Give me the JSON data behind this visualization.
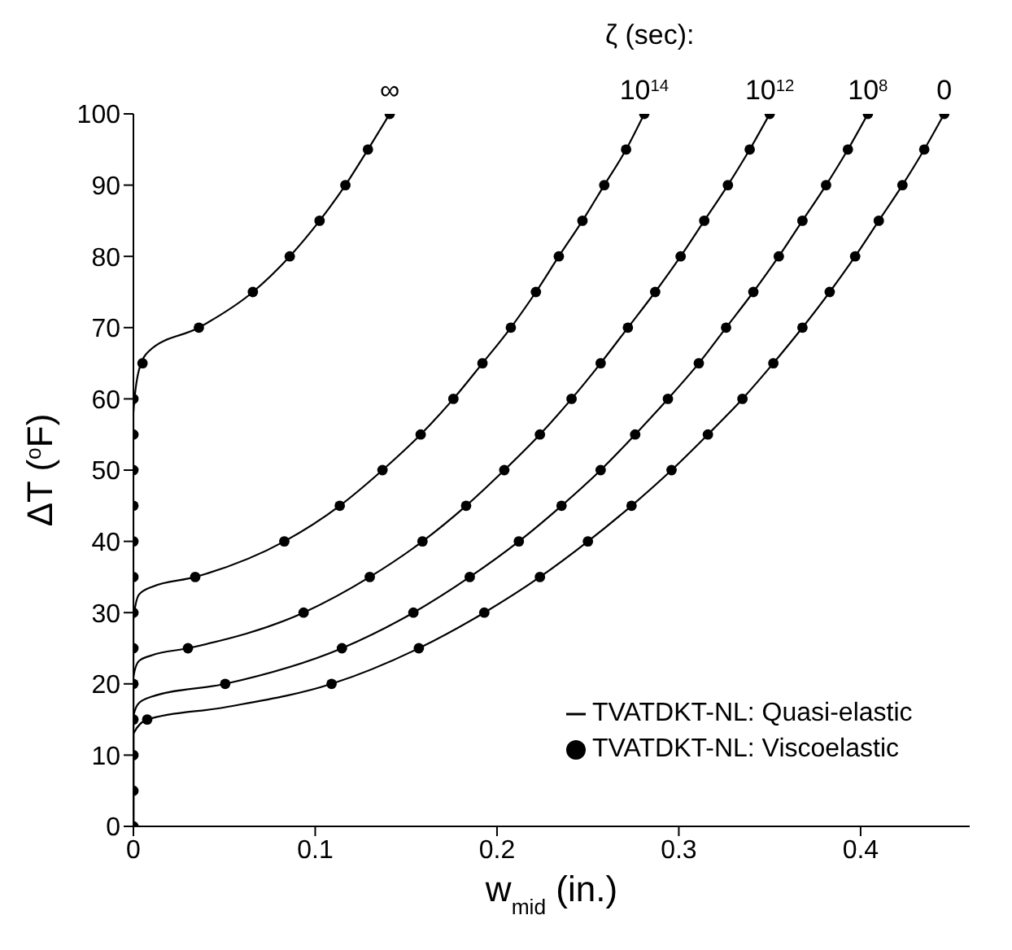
{
  "chart_data": {
    "type": "line",
    "xlabel": "w$_{mid}$ (in.)",
    "ylabel": "ΔT ($^{o}$F)",
    "xlim": [
      0,
      0.46
    ],
    "xticks": [
      0,
      0.1,
      0.2,
      0.3,
      0.4
    ],
    "ylim": [
      0,
      100
    ],
    "yticks": [
      0,
      10,
      20,
      30,
      40,
      50,
      60,
      70,
      80,
      90,
      100
    ],
    "legend": "bottom right",
    "annotations": [
      "ζ (sec):",
      {
        "text": "∞",
        "x": 0.141,
        "y": 100
      },
      {
        "text": "10$^{14}$",
        "x": 0.281,
        "y": 100
      },
      {
        "text": "10$^{12}$",
        "x": 0.35,
        "y": 100
      },
      {
        "text": "10$^{8}$",
        "x": 0.404,
        "y": 100
      },
      {
        "text": "0",
        "x": 0.446,
        "y": 100
      }
    ],
    "series": [
      {
        "name": "TVATDKT-NL: Quasi-elastic",
        "marker": "none",
        "line_style": "solid",
        "color": "#000000",
        "x": [
          0,
          0,
          0.003,
          0.0085,
          0.036,
          0.0657,
          0.086,
          0.1024,
          0.1166,
          0.129,
          0.141
        ],
        "values": [
          0,
          58,
          64,
          66.7,
          70,
          75,
          80,
          85,
          90,
          95,
          100
        ]
      },
      {
        "marker": "none",
        "line_style": "solid",
        "color": "#000000",
        "x": [
          0,
          0,
          0.003,
          0.01,
          0.034,
          0.083,
          0.1135,
          0.137,
          0.158,
          0.176,
          0.192,
          0.2076,
          0.2214,
          0.234,
          0.247,
          0.259,
          0.271,
          0.281
        ],
        "values": [
          0,
          29,
          32.5,
          33.6,
          35,
          40,
          45,
          50,
          55,
          60,
          65,
          70,
          75,
          80,
          85,
          90,
          95,
          100
        ]
      },
      {
        "marker": "none",
        "line_style": "solid",
        "color": "#000000",
        "x": [
          0,
          0,
          0.003,
          0.01,
          0.03,
          0.0936,
          0.13,
          0.159,
          0.183,
          0.204,
          0.2236,
          0.241,
          0.257,
          0.272,
          0.287,
          0.301,
          0.314,
          0.327,
          0.339,
          0.35
        ],
        "values": [
          0,
          21,
          23.2,
          24,
          25,
          30,
          35,
          40,
          45,
          50,
          55,
          60,
          65,
          70,
          75,
          80,
          85,
          90,
          95,
          100
        ]
      },
      {
        "marker": "none",
        "line_style": "solid",
        "color": "#000000",
        "x": [
          0,
          0,
          0.003,
          0.01,
          0.0505,
          0.1147,
          0.154,
          0.185,
          0.212,
          0.2355,
          0.257,
          0.276,
          0.294,
          0.311,
          0.326,
          0.341,
          0.355,
          0.368,
          0.381,
          0.393,
          0.404
        ],
        "values": [
          0,
          15.5,
          17.3,
          18.2,
          20,
          25,
          30,
          35,
          40,
          45,
          50,
          55,
          60,
          65,
          70,
          75,
          80,
          85,
          90,
          95,
          100
        ]
      },
      {
        "marker": "none",
        "line_style": "solid",
        "color": "#000000",
        "x": [
          0,
          0,
          0.0076,
          0.05,
          0.109,
          0.157,
          0.193,
          0.2236,
          0.25,
          0.274,
          0.296,
          0.316,
          0.335,
          0.352,
          0.368,
          0.383,
          0.397,
          0.41,
          0.423,
          0.435,
          0.446
        ],
        "values": [
          0,
          13,
          15,
          16.7,
          20,
          25,
          30,
          35,
          40,
          45,
          50,
          55,
          60,
          65,
          70,
          75,
          80,
          85,
          90,
          95,
          100
        ]
      },
      {
        "name": "TVATDKT-NL: Viscoelastic",
        "type": "scatter",
        "marker": "circle",
        "color": "#000000",
        "x": [
          0,
          0,
          0,
          0,
          0,
          0,
          0,
          0,
          0,
          0,
          0,
          0,
          0,
          0.005,
          0.036,
          0.0657,
          0.086,
          0.1024,
          0.1166,
          0.129,
          0.141,
          0.034,
          0.083,
          0.1135,
          0.137,
          0.158,
          0.176,
          0.192,
          0.2076,
          0.2214,
          0.234,
          0.247,
          0.259,
          0.271,
          0.281,
          0.03,
          0.0936,
          0.13,
          0.159,
          0.183,
          0.204,
          0.2236,
          0.241,
          0.257,
          0.272,
          0.287,
          0.301,
          0.314,
          0.327,
          0.339,
          0.35,
          0.0505,
          0.1147,
          0.154,
          0.185,
          0.212,
          0.2355,
          0.257,
          0.276,
          0.294,
          0.311,
          0.326,
          0.341,
          0.355,
          0.368,
          0.381,
          0.393,
          0.404,
          0.0076,
          0.109,
          0.157,
          0.193,
          0.2236,
          0.25,
          0.274,
          0.296,
          0.316,
          0.335,
          0.352,
          0.368,
          0.383,
          0.397,
          0.41,
          0.423,
          0.435,
          0.446
        ],
        "values": [
          0,
          5,
          10,
          15,
          20,
          25,
          30,
          35,
          40,
          45,
          50,
          55,
          60,
          65,
          70,
          75,
          80,
          85,
          90,
          95,
          100,
          35,
          40,
          45,
          50,
          55,
          60,
          65,
          70,
          75,
          80,
          85,
          90,
          95,
          100,
          25,
          30,
          35,
          40,
          45,
          50,
          55,
          60,
          65,
          70,
          75,
          80,
          85,
          90,
          95,
          100,
          20,
          25,
          30,
          35,
          40,
          45,
          50,
          55,
          60,
          65,
          70,
          75,
          80,
          85,
          90,
          95,
          100,
          15,
          20,
          25,
          30,
          35,
          40,
          45,
          50,
          55,
          60,
          65,
          70,
          75,
          80,
          85,
          90,
          95,
          100
        ]
      }
    ]
  }
}
